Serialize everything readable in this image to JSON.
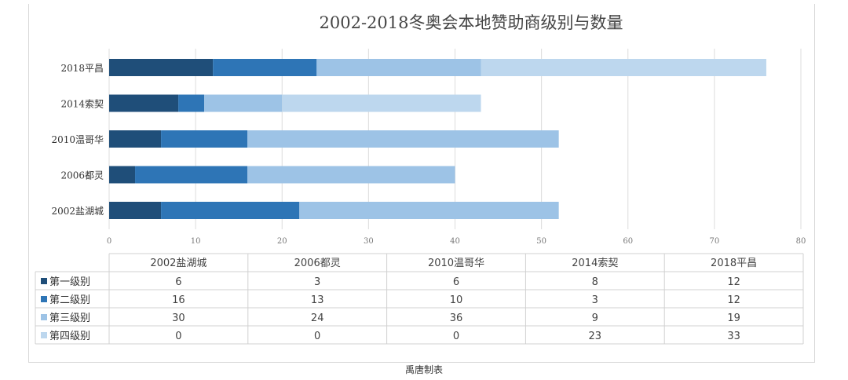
{
  "chart_data": {
    "type": "bar",
    "orientation": "horizontal",
    "stacked": true,
    "title": "2002-2018冬奥会本地赞助商级别与数量",
    "categories": [
      "2002盐湖城",
      "2006都灵",
      "2010温哥华",
      "2014索契",
      "2018平昌"
    ],
    "series": [
      {
        "name": "第一级别",
        "values": [
          6,
          3,
          6,
          8,
          12
        ],
        "color": "#1f4e79"
      },
      {
        "name": "第二级别",
        "values": [
          16,
          13,
          10,
          3,
          12
        ],
        "color": "#2e75b6"
      },
      {
        "name": "第三级别",
        "values": [
          30,
          24,
          36,
          9,
          19
        ],
        "color": "#9dc3e6"
      },
      {
        "name": "第四级别",
        "values": [
          0,
          0,
          0,
          23,
          33
        ],
        "color": "#bdd7ee"
      }
    ],
    "xlim": [
      0,
      80
    ],
    "xticks": [
      0,
      10,
      20,
      30,
      40,
      50,
      60,
      70,
      80
    ],
    "grid": true,
    "legend": "data-table-below"
  },
  "footer": "禹唐制表"
}
